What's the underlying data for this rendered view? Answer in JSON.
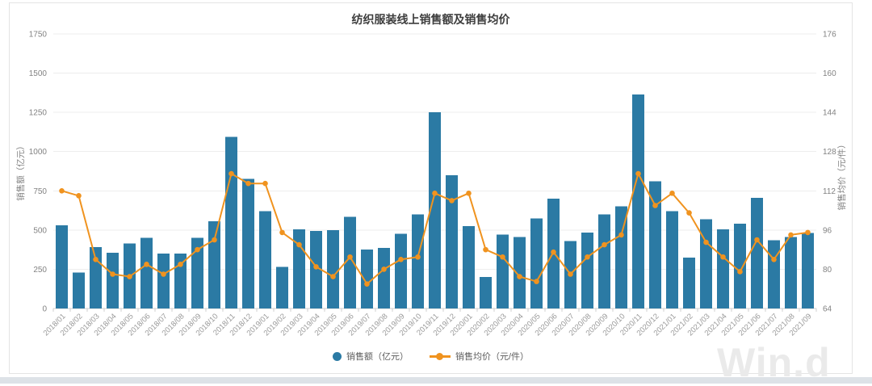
{
  "page": {
    "watermark": "Win.d"
  },
  "chart": {
    "title": "纺织服装线上销售额及销售均价"
  },
  "chart_data": {
    "type": "bar+line",
    "title": "纺织服装线上销售额及销售均价",
    "categories": [
      "2018/01",
      "2018/02",
      "2018/03",
      "2018/04",
      "2018/05",
      "2018/06",
      "2018/07",
      "2018/08",
      "2018/09",
      "2018/10",
      "2018/11",
      "2018/12",
      "2019/01",
      "2019/02",
      "2019/03",
      "2019/04",
      "2019/05",
      "2019/06",
      "2019/07",
      "2019/08",
      "2019/09",
      "2019/10",
      "2019/11",
      "2019/12",
      "2020/01",
      "2020/02",
      "2020/03",
      "2020/04",
      "2020/05",
      "2020/06",
      "2020/07",
      "2020/08",
      "2020/09",
      "2020/10",
      "2020/11",
      "2020/12",
      "2021/01",
      "2021/02",
      "2021/03",
      "2021/04",
      "2021/05",
      "2021/06",
      "2021/07",
      "2021/08",
      "2021/09"
    ],
    "series": [
      {
        "name": "销售额（亿元）",
        "type": "bar",
        "axis": "left",
        "color": "#2b7aa4",
        "values": [
          530,
          230,
          390,
          355,
          415,
          450,
          350,
          350,
          450,
          555,
          1095,
          825,
          620,
          265,
          505,
          495,
          500,
          585,
          375,
          385,
          475,
          600,
          1250,
          850,
          525,
          200,
          470,
          455,
          575,
          700,
          430,
          485,
          600,
          650,
          1365,
          810,
          620,
          325,
          570,
          505,
          540,
          705,
          435,
          455,
          480
        ]
      },
      {
        "name": "销售均价（元/件）",
        "type": "line",
        "axis": "right",
        "color": "#f0931f",
        "values": [
          112,
          110,
          84,
          78,
          77,
          82,
          78,
          82,
          88,
          92,
          119,
          115,
          115,
          95,
          90,
          81,
          77,
          85,
          74,
          80,
          84,
          85,
          111,
          108,
          111,
          88,
          85,
          77,
          75,
          87,
          78,
          85,
          90,
          94,
          119,
          106,
          111,
          103,
          91,
          85,
          79,
          92,
          84,
          94,
          95
        ]
      }
    ],
    "left_axis": {
      "label": "销售额（亿元）",
      "range": [
        0,
        1750
      ],
      "ticks": [
        0,
        250,
        500,
        750,
        1000,
        1250,
        1500,
        1750
      ]
    },
    "right_axis": {
      "label": "销售均价（元/件）",
      "range": [
        64,
        176
      ],
      "ticks": [
        64,
        80,
        96,
        112,
        128,
        144,
        160,
        176
      ]
    },
    "grid": true,
    "legend_position": "bottom",
    "colors": {
      "grid_line": "#ededed",
      "axis_line": "#cfcfcf",
      "tick_text": "#828282",
      "x_label_text": "#9a9a9a"
    }
  }
}
